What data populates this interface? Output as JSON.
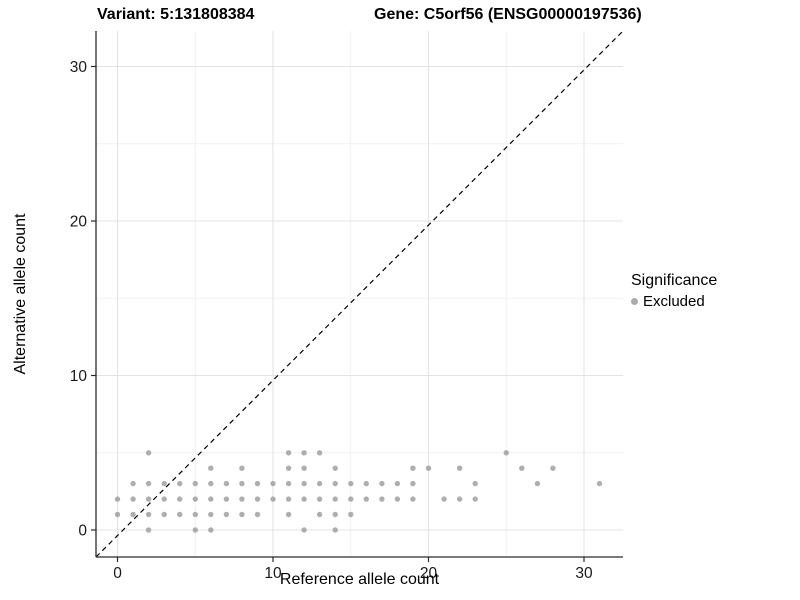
{
  "titles": {
    "variant": "Variant: 5:131808384",
    "gene": "Gene: C5orf56 (ENSG00000197536)"
  },
  "axes": {
    "x_label": "Reference allele count",
    "y_label": "Alternative allele count",
    "x_ticks": [
      0,
      10,
      20,
      30
    ],
    "y_ticks": [
      0,
      10,
      20,
      30
    ]
  },
  "legend": {
    "title": "Significance",
    "items": [
      {
        "label": "Excluded",
        "color": "#ababab",
        "marker": "dot-icon"
      }
    ]
  },
  "colors": {
    "point": "#9a9a9a",
    "grid_major": "#e3e3e3",
    "grid_minor": "#f1f1f1",
    "axis_line": "#2a2a2a",
    "tick_text": "#1a1a1a",
    "diagonal_line": "#000000",
    "background": "#ffffff"
  },
  "chart_data": {
    "type": "scatter",
    "title": "Variant: 5:131808384 | Gene: C5orf56 (ENSG00000197536)",
    "xlabel": "Reference allele count",
    "ylabel": "Alternative allele count",
    "xlim": [
      -1.5,
      32.5
    ],
    "ylim": [
      -1.5,
      32.5
    ],
    "major_ticks": [
      0,
      10,
      20,
      30
    ],
    "minor_gridlines": [
      5,
      15,
      25
    ],
    "grid": true,
    "legend_position": "right",
    "identity_line": {
      "type": "dashed",
      "equation": "y = x"
    },
    "series": [
      {
        "name": "Excluded",
        "color": "#9a9a9a",
        "points": [
          [
            2,
            0
          ],
          [
            5,
            0
          ],
          [
            6,
            0
          ],
          [
            12,
            0
          ],
          [
            14,
            0
          ],
          [
            0,
            1
          ],
          [
            1,
            1
          ],
          [
            2,
            1
          ],
          [
            3,
            1
          ],
          [
            4,
            1
          ],
          [
            5,
            1
          ],
          [
            6,
            1
          ],
          [
            7,
            1
          ],
          [
            8,
            1
          ],
          [
            9,
            1
          ],
          [
            11,
            1
          ],
          [
            13,
            1
          ],
          [
            14,
            1
          ],
          [
            15,
            1
          ],
          [
            0,
            2
          ],
          [
            1,
            2
          ],
          [
            2,
            2
          ],
          [
            3,
            2
          ],
          [
            4,
            2
          ],
          [
            5,
            2
          ],
          [
            6,
            2
          ],
          [
            7,
            2
          ],
          [
            8,
            2
          ],
          [
            9,
            2
          ],
          [
            10,
            2
          ],
          [
            11,
            2
          ],
          [
            12,
            2
          ],
          [
            13,
            2
          ],
          [
            14,
            2
          ],
          [
            15,
            2
          ],
          [
            16,
            2
          ],
          [
            17,
            2
          ],
          [
            18,
            2
          ],
          [
            19,
            2
          ],
          [
            21,
            2
          ],
          [
            22,
            2
          ],
          [
            23,
            2
          ],
          [
            1,
            3
          ],
          [
            2,
            3
          ],
          [
            3,
            3
          ],
          [
            4,
            3
          ],
          [
            5,
            3
          ],
          [
            6,
            3
          ],
          [
            7,
            3
          ],
          [
            8,
            3
          ],
          [
            9,
            3
          ],
          [
            10,
            3
          ],
          [
            11,
            3
          ],
          [
            12,
            3
          ],
          [
            13,
            3
          ],
          [
            14,
            3
          ],
          [
            15,
            3
          ],
          [
            16,
            3
          ],
          [
            17,
            3
          ],
          [
            18,
            3
          ],
          [
            19,
            3
          ],
          [
            23,
            3
          ],
          [
            27,
            3
          ],
          [
            31,
            3
          ],
          [
            6,
            4
          ],
          [
            8,
            4
          ],
          [
            11,
            4
          ],
          [
            12,
            4
          ],
          [
            14,
            4
          ],
          [
            19,
            4
          ],
          [
            20,
            4
          ],
          [
            22,
            4
          ],
          [
            26,
            4
          ],
          [
            28,
            4
          ],
          [
            2,
            5
          ],
          [
            11,
            5
          ],
          [
            12,
            5
          ],
          [
            13,
            5
          ],
          [
            25,
            5
          ]
        ]
      }
    ]
  }
}
